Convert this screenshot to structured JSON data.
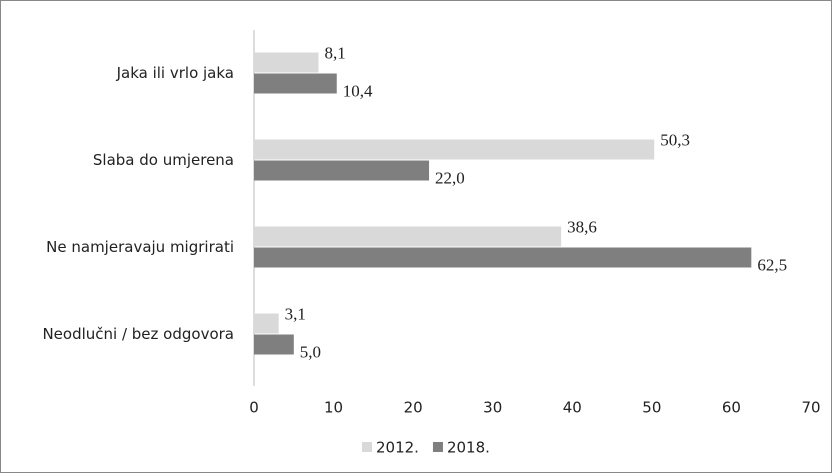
{
  "chart_data": {
    "type": "barh",
    "categories": [
      "Jaka ili vrlo jaka",
      "Slaba do umjerena",
      "Ne namjeravaju migrirati",
      "Neodlučni / bez odgovora"
    ],
    "series": [
      {
        "name": "2012.",
        "color": "#d9d9d9",
        "values": [
          8.1,
          50.3,
          38.6,
          3.1
        ],
        "value_labels": [
          "8,1",
          "50,3",
          "38,6",
          "3,1"
        ]
      },
      {
        "name": "2018.",
        "color": "#7f7f7f",
        "values": [
          10.4,
          22.0,
          62.5,
          5.0
        ],
        "value_labels": [
          "10,4",
          "22,0",
          "62,5",
          "5,0"
        ]
      }
    ],
    "xlim": [
      0,
      70
    ],
    "xticks": [
      0,
      10,
      20,
      30,
      40,
      50,
      60,
      70
    ],
    "legend": "bottom"
  }
}
